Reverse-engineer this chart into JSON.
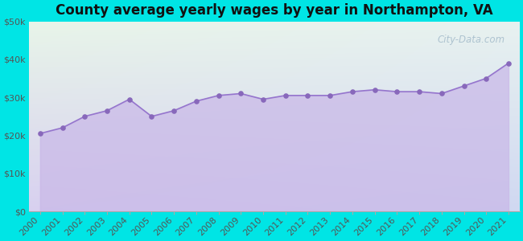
{
  "title": "County average yearly wages by year in Northampton, VA",
  "years": [
    2000,
    2001,
    2002,
    2003,
    2004,
    2005,
    2006,
    2007,
    2008,
    2009,
    2010,
    2011,
    2012,
    2013,
    2014,
    2015,
    2016,
    2017,
    2018,
    2019,
    2020,
    2021
  ],
  "wages": [
    20500,
    22000,
    25000,
    26500,
    29500,
    25000,
    26500,
    29000,
    30500,
    31000,
    29500,
    30500,
    30500,
    30500,
    31500,
    32000,
    31500,
    31500,
    31000,
    33000,
    35000,
    39000
  ],
  "ylim": [
    0,
    50000
  ],
  "yticks": [
    0,
    10000,
    20000,
    30000,
    40000,
    50000
  ],
  "ytick_labels": [
    "$0",
    "$10k",
    "$20k",
    "$30k",
    "$40k",
    "$50k"
  ],
  "bg_outer": "#00e5e5",
  "bg_plot_top_left": "#e8f5e9",
  "bg_plot_bottom_right": "#dce5f5",
  "fill_color_top": "#c9b8e8",
  "fill_color_bottom": "#c9b8e8",
  "fill_alpha": 0.72,
  "line_color": "#9575cd",
  "marker_color": "#8868bb",
  "marker_size": 14,
  "watermark": "City-Data.com",
  "title_fontsize": 12,
  "tick_fontsize": 8,
  "tick_color": "#555555"
}
